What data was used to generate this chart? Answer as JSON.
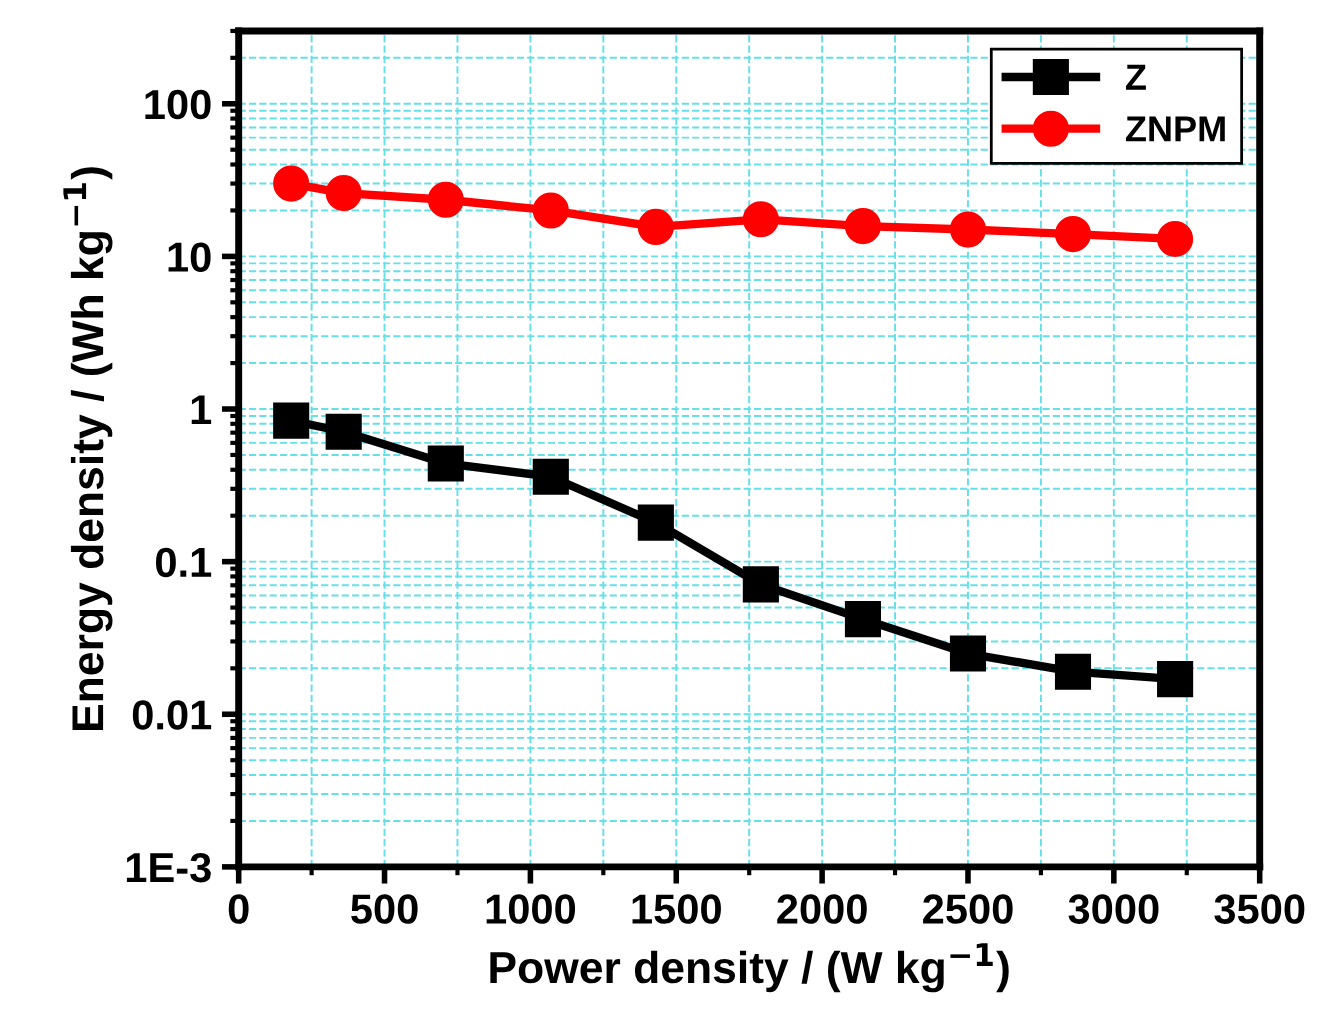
{
  "chart_data": {
    "type": "line",
    "xlabel": "Power density / (W kg$^{−1}$)",
    "ylabel": "Energy density / (Wh kg$^{−1}$)",
    "x": [
      180,
      360,
      710,
      1070,
      1430,
      1790,
      2140,
      2500,
      2860,
      3210
    ],
    "series": [
      {
        "name": "Z",
        "color": "#000000",
        "marker": "square",
        "values": [
          0.84,
          0.71,
          0.44,
          0.36,
          0.18,
          0.071,
          0.042,
          0.025,
          0.019,
          0.017
        ]
      },
      {
        "name": "ZNPM",
        "color": "#ff0000",
        "marker": "circle",
        "values": [
          30,
          26,
          23.5,
          20,
          15.6,
          17.5,
          15.8,
          15,
          14,
          13
        ]
      }
    ],
    "log": "y",
    "xlim": [
      0,
      3500
    ],
    "xticks": [
      0,
      500,
      1000,
      1500,
      2000,
      2500,
      3000,
      3500
    ],
    "ylim": [
      0.001,
      300
    ],
    "yticks": [
      {
        "value": 0.001,
        "label": "1E-3"
      },
      0.01,
      0.1,
      1,
      10,
      100
    ],
    "grid": true,
    "legend": "top right",
    "line_style": "solid"
  }
}
